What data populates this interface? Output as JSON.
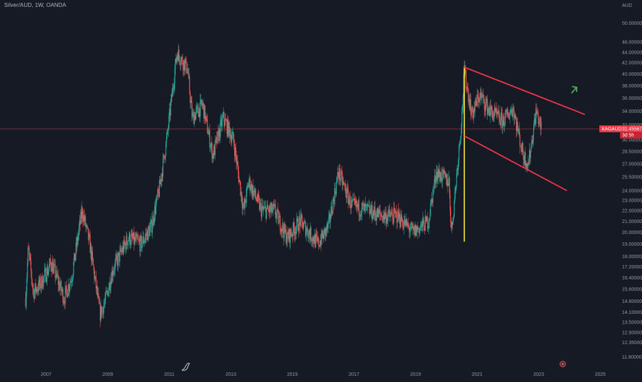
{
  "header": {
    "symbol_title": "Silver/AUD, 1W, OANDA"
  },
  "price_axis": {
    "currency": "AUD",
    "ticks": [
      "50.00000",
      "46.00000",
      "44.00000",
      "42.00000",
      "40.00000",
      "38.00000",
      "36.00000",
      "34.00000",
      "32.00000",
      "30.00000",
      "28.50000",
      "27.00000",
      "25.50000",
      "24.00000",
      "23.00000",
      "22.00000",
      "21.00000",
      "20.00000",
      "19.00000",
      "18.00000",
      "17.20000",
      "16.40000",
      "15.60000",
      "14.80000",
      "14.10000",
      "13.50000",
      "12.90000",
      "12.35000",
      "11.60000"
    ]
  },
  "time_axis": {
    "ticks": [
      "2007",
      "2009",
      "2011",
      "2013",
      "2015",
      "2017",
      "2019",
      "2021",
      "2023",
      "2025"
    ]
  },
  "current_price": {
    "symbol": "XAGAUD",
    "value": "31.45567",
    "countdown": "3d 5h"
  },
  "colors": {
    "background": "#161a25",
    "up_candle": "#26a69a",
    "down_candle": "#ef5350",
    "trendline": "#f23645",
    "vertical_marker": "#ffeb3b",
    "arrow": "#4caf50",
    "price_line": "#f23645"
  },
  "icons": {
    "watermark": "tradingview-logo-icon",
    "event_marker": "economic-event-icon"
  },
  "chart_data": {
    "type": "candlestick",
    "title": "Silver/AUD, 1W, OANDA",
    "y_unit": "AUD",
    "y_scale": "log",
    "ylim": [
      11.2,
      53
    ],
    "xlim": [
      "2005-07",
      "2025-06"
    ],
    "grid": false,
    "price_path": [
      [
        "2006-05",
        15.0
      ],
      [
        "2006-06",
        18.6
      ],
      [
        "2006-08",
        15.4
      ],
      [
        "2006-11",
        16.0
      ],
      [
        "2007-03",
        17.5
      ],
      [
        "2007-08",
        15.0
      ],
      [
        "2007-11",
        16.5
      ],
      [
        "2008-03",
        22.0
      ],
      [
        "2008-06",
        19.0
      ],
      [
        "2008-10",
        14.0
      ],
      [
        "2008-12",
        14.8
      ],
      [
        "2009-03",
        17.0
      ],
      [
        "2009-09",
        19.5
      ],
      [
        "2010-02",
        19.0
      ],
      [
        "2010-06",
        20.5
      ],
      [
        "2010-09",
        24.0
      ],
      [
        "2010-12",
        30.0
      ],
      [
        "2011-04",
        44.0
      ],
      [
        "2011-08",
        41.0
      ],
      [
        "2011-10",
        33.0
      ],
      [
        "2012-02",
        35.0
      ],
      [
        "2012-06",
        28.0
      ],
      [
        "2012-10",
        33.0
      ],
      [
        "2013-02",
        30.0
      ],
      [
        "2013-06",
        22.0
      ],
      [
        "2013-08",
        25.0
      ],
      [
        "2014-01",
        22.0
      ],
      [
        "2014-06",
        22.0
      ],
      [
        "2014-11",
        19.5
      ],
      [
        "2015-04",
        21.0
      ],
      [
        "2015-11",
        19.0
      ],
      [
        "2016-03",
        20.5
      ],
      [
        "2016-07",
        26.0
      ],
      [
        "2016-12",
        22.5
      ],
      [
        "2017-06",
        22.0
      ],
      [
        "2017-12",
        21.5
      ],
      [
        "2018-06",
        21.5
      ],
      [
        "2018-12",
        20.0
      ],
      [
        "2019-06",
        21.0
      ],
      [
        "2019-09",
        26.0
      ],
      [
        "2020-02",
        25.0
      ],
      [
        "2020-03",
        20.0
      ],
      [
        "2020-07",
        33.0
      ],
      [
        "2020-08",
        40.5
      ],
      [
        "2020-11",
        33.5
      ],
      [
        "2021-02",
        36.5
      ],
      [
        "2021-06",
        34.0
      ],
      [
        "2021-11",
        32.5
      ],
      [
        "2022-03",
        34.5
      ],
      [
        "2022-07",
        28.0
      ],
      [
        "2022-09",
        27.0
      ],
      [
        "2022-12",
        34.0
      ],
      [
        "2023-02",
        31.45567
      ]
    ],
    "last_price": 31.45567,
    "annotations": [
      {
        "type": "vertical-line",
        "x": "2020-08",
        "y_range": [
          19.2,
          41.2
        ]
      },
      {
        "type": "trendline",
        "from": [
          "2020-08",
          41.2
        ],
        "to": [
          "2024-07",
          33.5
        ]
      },
      {
        "type": "trendline",
        "from": [
          "2020-08",
          30.5
        ],
        "to": [
          "2023-12",
          24.0
        ]
      },
      {
        "type": "arrow-up",
        "at": [
          "2024-03",
          37.5
        ]
      }
    ]
  }
}
